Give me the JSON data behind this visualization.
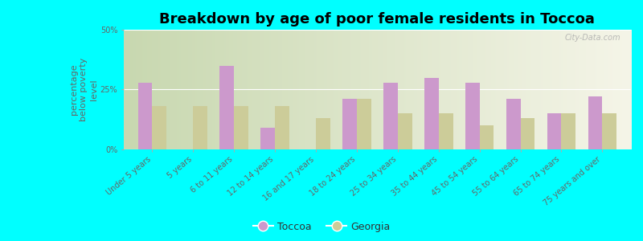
{
  "title": "Breakdown by age of poor female residents in Toccoa",
  "ylabel": "percentage\nbelow poverty\nlevel",
  "categories": [
    "Under 5 years",
    "5 years",
    "6 to 11 years",
    "12 to 14 years",
    "16 and 17 years",
    "18 to 24 years",
    "25 to 34 years",
    "35 to 44 years",
    "45 to 54 years",
    "55 to 64 years",
    "65 to 74 years",
    "75 years and over"
  ],
  "toccoa_values": [
    28,
    0,
    35,
    9,
    0,
    21,
    28,
    30,
    28,
    21,
    15,
    22
  ],
  "georgia_values": [
    18,
    18,
    18,
    18,
    13,
    21,
    15,
    15,
    10,
    13,
    15,
    15
  ],
  "toccoa_color": "#cc99cc",
  "georgia_color": "#cccc99",
  "bg_color": "#00ffff",
  "plot_bg_left": "#c8d8b0",
  "plot_bg_right": "#f0f0e8",
  "ylim": [
    0,
    50
  ],
  "yticks": [
    0,
    25,
    50
  ],
  "ytick_labels": [
    "0%",
    "25%",
    "50%"
  ],
  "bar_width": 0.35,
  "title_fontsize": 13,
  "axis_label_fontsize": 8,
  "tick_fontsize": 7,
  "legend_labels": [
    "Toccoa",
    "Georgia"
  ],
  "watermark": "City-Data.com"
}
